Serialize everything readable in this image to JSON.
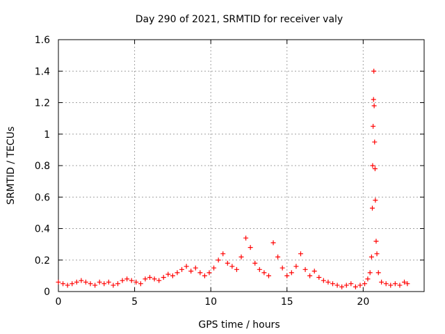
{
  "chart_data": {
    "type": "scatter",
    "title": "Day 290 of 2021, SRMTID for receiver valy",
    "xlabel": "GPS time / hours",
    "ylabel": "SRMTID / TECUs",
    "xlim": [
      0,
      24
    ],
    "ylim": [
      0,
      1.6
    ],
    "xticks": [
      0,
      5,
      10,
      15,
      20
    ],
    "xtick_labels": [
      "0",
      "5",
      "10",
      "15",
      "20"
    ],
    "yticks": [
      0,
      0.2,
      0.4,
      0.6,
      0.8,
      1.0,
      1.2,
      1.4,
      1.6
    ],
    "ytick_labels": [
      "0",
      "0.2",
      "0.4",
      "0.6",
      "0.8",
      "1",
      "1.2",
      "1.4",
      "1.6"
    ],
    "grid": true,
    "marker": "+",
    "colors": {
      "series": "#ff0000",
      "grid": "#a0a0a0",
      "axis": "#000000"
    },
    "series": [
      {
        "name": "SRMTID",
        "x": [
          0.0,
          0.3,
          0.6,
          0.9,
          1.2,
          1.5,
          1.8,
          2.1,
          2.4,
          2.7,
          3.0,
          3.3,
          3.6,
          3.9,
          4.2,
          4.5,
          4.8,
          5.1,
          5.4,
          5.7,
          6.0,
          6.3,
          6.6,
          6.9,
          7.2,
          7.5,
          7.8,
          8.1,
          8.4,
          8.7,
          9.0,
          9.3,
          9.6,
          9.9,
          10.2,
          10.5,
          10.8,
          11.1,
          11.4,
          11.7,
          12.0,
          12.3,
          12.6,
          12.9,
          13.2,
          13.5,
          13.8,
          14.1,
          14.4,
          14.7,
          15.0,
          15.3,
          15.6,
          15.9,
          16.2,
          16.5,
          16.8,
          17.1,
          17.4,
          17.7,
          18.0,
          18.3,
          18.6,
          18.9,
          19.2,
          19.5,
          19.8,
          20.1,
          20.3,
          20.45,
          20.55,
          20.6,
          20.62,
          20.65,
          20.68,
          20.7,
          20.72,
          20.75,
          20.78,
          20.8,
          20.85,
          20.9,
          21.0,
          21.2,
          21.5,
          21.8,
          22.1,
          22.4,
          22.7,
          22.9
        ],
        "y": [
          0.06,
          0.05,
          0.04,
          0.05,
          0.06,
          0.07,
          0.06,
          0.05,
          0.04,
          0.06,
          0.05,
          0.06,
          0.04,
          0.05,
          0.07,
          0.08,
          0.07,
          0.06,
          0.05,
          0.08,
          0.09,
          0.08,
          0.07,
          0.09,
          0.11,
          0.1,
          0.12,
          0.14,
          0.16,
          0.13,
          0.15,
          0.12,
          0.1,
          0.12,
          0.15,
          0.2,
          0.24,
          0.18,
          0.16,
          0.14,
          0.22,
          0.34,
          0.28,
          0.18,
          0.14,
          0.12,
          0.1,
          0.31,
          0.22,
          0.15,
          0.1,
          0.12,
          0.16,
          0.24,
          0.14,
          0.1,
          0.13,
          0.09,
          0.07,
          0.06,
          0.05,
          0.04,
          0.03,
          0.04,
          0.05,
          0.03,
          0.04,
          0.05,
          0.08,
          0.12,
          0.22,
          0.53,
          0.8,
          1.05,
          1.22,
          1.4,
          1.18,
          0.95,
          0.78,
          0.58,
          0.32,
          0.24,
          0.12,
          0.06,
          0.05,
          0.04,
          0.05,
          0.04,
          0.06,
          0.05
        ]
      }
    ]
  }
}
